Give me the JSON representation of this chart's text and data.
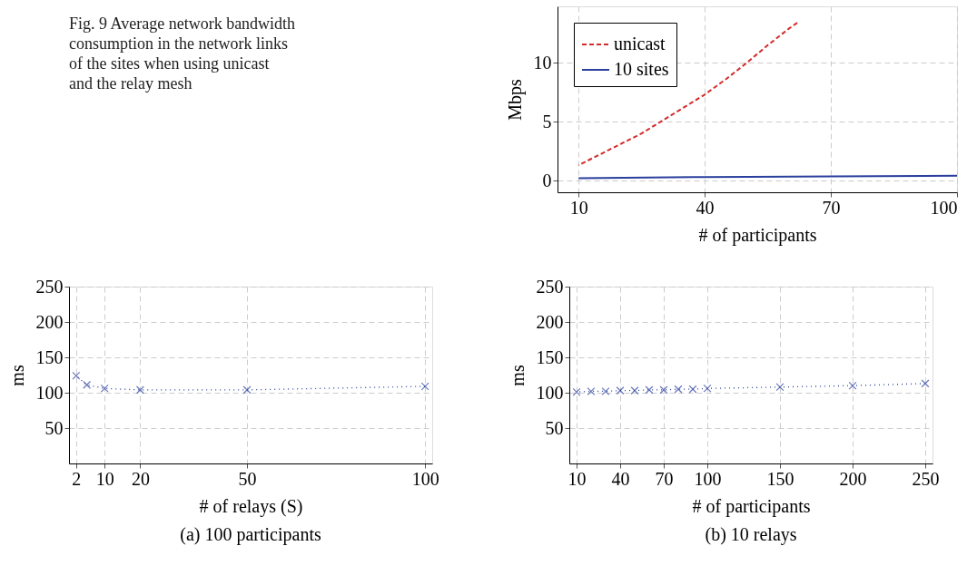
{
  "chart_data": [
    {
      "type": "other",
      "title": "Fig. 9 Average network bandwidth consumption in the network links of the sites when using unicast and the relay mesh"
    },
    {
      "type": "line",
      "xlabel": "# of participants",
      "ylabel": "Mbps",
      "xlim": [
        5,
        100
      ],
      "ylim": [
        -1,
        14.8
      ],
      "xticks": [
        10,
        40,
        70,
        100
      ],
      "yticks": [
        0,
        5,
        10
      ],
      "grid": true,
      "legend": "top left",
      "series": [
        {
          "name": "unicast",
          "color": "#d42a2a",
          "line_style": "dashed",
          "x": [
            10,
            15,
            20,
            25,
            30,
            35,
            40,
            45,
            50,
            55,
            60,
            62
          ],
          "values": [
            1.3,
            2.2,
            3.1,
            4.0,
            5.1,
            6.2,
            7.3,
            8.6,
            10.0,
            11.5,
            12.9,
            13.4
          ]
        },
        {
          "name": "10 sites",
          "color": "#2a3f9e",
          "line_style": "solid",
          "x": [
            10,
            40,
            70,
            100
          ],
          "values": [
            0.2,
            0.3,
            0.35,
            0.4
          ]
        }
      ]
    },
    {
      "type": "line",
      "title": "(a) 100 participants",
      "xlabel": "# of relays (S)",
      "ylabel": "ms",
      "xlim": [
        0,
        102
      ],
      "ylim": [
        0,
        250
      ],
      "xticks": [
        2,
        10,
        20,
        50,
        100
      ],
      "yticks": [
        50,
        100,
        150,
        200,
        250
      ],
      "grid": true,
      "marker": "cross",
      "series": [
        {
          "color": "#2a3f9e",
          "line_style": "dotted",
          "x": [
            2,
            5,
            10,
            20,
            50,
            100
          ],
          "values": [
            124,
            111,
            106,
            104,
            104,
            109
          ]
        }
      ]
    },
    {
      "type": "line",
      "title": "(b) 10 relays",
      "xlabel": "# of participants",
      "ylabel": "ms",
      "xlim": [
        5,
        255
      ],
      "ylim": [
        0,
        250
      ],
      "xticks": [
        10,
        40,
        70,
        100,
        150,
        200,
        250
      ],
      "yticks": [
        50,
        100,
        150,
        200,
        250
      ],
      "grid": true,
      "marker": "cross",
      "series": [
        {
          "color": "#2a3f9e",
          "line_style": "dotted",
          "x": [
            10,
            20,
            30,
            40,
            50,
            60,
            70,
            80,
            90,
            100,
            150,
            200,
            250
          ],
          "values": [
            101,
            102,
            102,
            103,
            103,
            104,
            104,
            105,
            105,
            106,
            108,
            110,
            113
          ]
        }
      ]
    }
  ]
}
